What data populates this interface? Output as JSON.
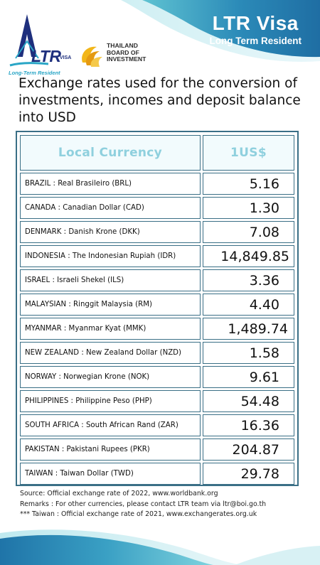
{
  "header": {
    "title": "LTR Visa",
    "subtitle": "Long Term Resident",
    "ltr_logo": {
      "brand": "LTR",
      "brand_sub": "VISA",
      "tagline": "Long-Term Resident"
    },
    "boi_logo": {
      "line1": "THAILAND",
      "line2": "BOARD OF",
      "line3": "INVESTMENT"
    }
  },
  "headline": "Exchange rates used for the conversion of investments, incomes and deposit balance into USD",
  "table": {
    "col_currency": "Local Currency",
    "col_rate": "1US$",
    "rows": [
      {
        "currency": "BRAZIL : Real Brasileiro (BRL)",
        "rate": "5.16"
      },
      {
        "currency": "CANADA : Canadian Dollar (CAD)",
        "rate": "1.30"
      },
      {
        "currency": "DENMARK : Danish Krone (DKK)",
        "rate": "7.08"
      },
      {
        "currency": "INDONESIA : The Indonesian Rupiah (IDR)",
        "rate": "14,849.85"
      },
      {
        "currency": "ISRAEL : Israeli Shekel (ILS)",
        "rate": "3.36"
      },
      {
        "currency": "MALAYSIAN : Ringgit Malaysia (RM)",
        "rate": "4.40"
      },
      {
        "currency": "MYANMAR : Myanmar Kyat (MMK)",
        "rate": "1,489.74"
      },
      {
        "currency": "NEW ZEALAND : New Zealand Dollar (NZD)",
        "rate": "1.58"
      },
      {
        "currency": "NORWAY : Norwegian Krone (NOK)",
        "rate": "9.61"
      },
      {
        "currency": "PHILIPPINES : Philippine Peso (PHP)",
        "rate": "54.48"
      },
      {
        "currency": "SOUTH AFRICA : South African Rand (ZAR)",
        "rate": "16.36"
      },
      {
        "currency": "PAKISTAN : Pakistani Rupees (PKR)",
        "rate": "204.87"
      },
      {
        "currency": "TAIWAN : Taiwan Dollar (TWD)",
        "rate": "29.78"
      }
    ]
  },
  "notes": [
    "Source: Official exchange rate of 2022, www.worldbank.org",
    "Remarks : For other currencies, please contact LTR team via ltr@boi.go.th",
    "*** Taiwan : Official exchange rate of 2021, www.exchangerates.org.uk"
  ],
  "colors": {
    "header_blue": "#1f74a8",
    "header_teal": "#5fc3d2",
    "table_border": "#3a6f86",
    "header_text": "#8fd0de"
  }
}
